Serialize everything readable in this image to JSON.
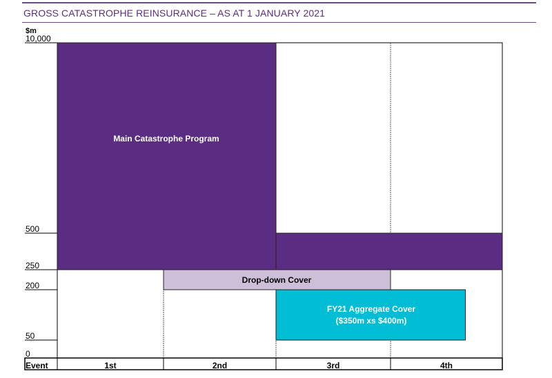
{
  "header": {
    "title": "GROSS CATASTROPHE REINSURANCE – AS AT 1 JANUARY 2021"
  },
  "chart_data": {
    "type": "bar",
    "unit_label": "$m",
    "y_ticks": [
      {
        "label": "10,000",
        "value": 10000
      },
      {
        "label": "500",
        "value": 500
      },
      {
        "label": "250",
        "value": 250
      },
      {
        "label": "200",
        "value": 200
      },
      {
        "label": "50",
        "value": 50
      },
      {
        "label": "0",
        "value": 0
      }
    ],
    "x_axis_label": "Event",
    "categories": [
      "1st",
      "2nd",
      "3rd",
      "4th"
    ],
    "layers": [
      {
        "name": "Main Catastrophe Program",
        "from_event": 1,
        "to_event": 2,
        "lower": 250,
        "upper": 10000,
        "color": "#5b2d82",
        "text_color": "#ffffff"
      },
      {
        "name": "Main Catastrophe Program (continued)",
        "from_event": 3,
        "to_event": 4,
        "lower": 250,
        "upper": 500,
        "color": "#5b2d82",
        "text_color": "#ffffff"
      },
      {
        "name": "Drop-down Cover",
        "from_event": 2,
        "to_event": 3,
        "lower": 200,
        "upper": 250,
        "color": "#cdbfd8",
        "text_color": "#000000"
      },
      {
        "name": "FY21 Aggregate Cover\n($350m xs $400m)",
        "from_event": 3,
        "to_event": 4,
        "to_fraction": 0.67,
        "lower": 50,
        "upper": 200,
        "color": "#00bcd4",
        "text_color": "#ffffff"
      }
    ],
    "block_labels": [
      {
        "key": "main",
        "text": "Main Catastrophe Program"
      },
      {
        "key": "dropdown",
        "text": "Drop-down Cover"
      },
      {
        "key": "aggregate_line1",
        "text": "FY21 Aggregate Cover"
      },
      {
        "key": "aggregate_line2",
        "text": "($350m xs $400m)"
      }
    ]
  }
}
